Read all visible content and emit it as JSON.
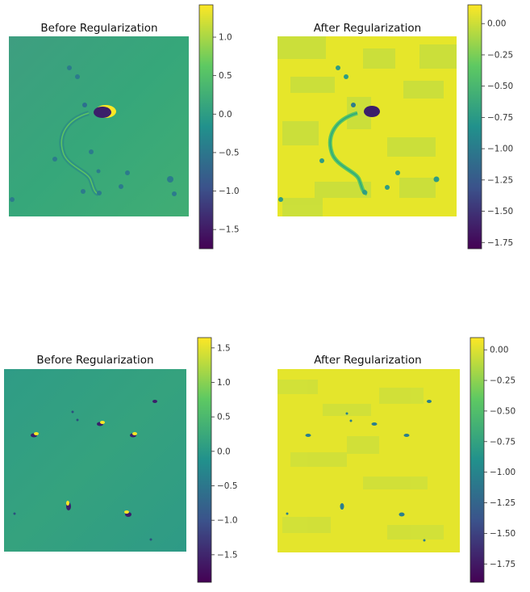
{
  "chart_data": [
    {
      "type": "heatmap",
      "title": "Before Regularization",
      "colormap": "viridis",
      "colorbar": {
        "ticks": [
          1.0,
          0.5,
          0.0,
          -0.5,
          -1.0,
          -1.5
        ],
        "tick_labels": [
          "1.0",
          "0.5",
          "0.0",
          "−0.5",
          "−1.0",
          "−1.5"
        ],
        "range": [
          -1.75,
          1.42
        ]
      }
    },
    {
      "type": "heatmap",
      "title": "After Regularization",
      "colormap": "viridis",
      "colorbar": {
        "ticks": [
          0.0,
          -0.25,
          -0.5,
          -0.75,
          -1.0,
          -1.25,
          -1.5,
          -1.75
        ],
        "tick_labels": [
          "0.00",
          "−0.25",
          "−0.50",
          "−0.75",
          "−1.00",
          "−1.25",
          "−1.50",
          "−1.75"
        ],
        "range": [
          -1.8,
          0.15
        ]
      }
    },
    {
      "type": "heatmap",
      "title": "Before Regularization",
      "colormap": "viridis",
      "colorbar": {
        "ticks": [
          1.5,
          1.0,
          0.5,
          0.0,
          -0.5,
          -1.0,
          -1.5
        ],
        "tick_labels": [
          "1.5",
          "1.0",
          "0.5",
          "0.0",
          "−0.5",
          "−1.0",
          "−1.5"
        ],
        "range": [
          -1.9,
          1.65
        ]
      }
    },
    {
      "type": "heatmap",
      "title": "After Regularization",
      "colormap": "viridis",
      "colorbar": {
        "ticks": [
          0.0,
          -0.25,
          -0.5,
          -0.75,
          -1.0,
          -1.25,
          -1.5,
          -1.75
        ],
        "tick_labels": [
          "0.00",
          "−0.25",
          "−0.50",
          "−0.75",
          "−1.00",
          "−1.25",
          "−1.50",
          "−1.75"
        ],
        "range": [
          -1.9,
          0.1
        ]
      }
    }
  ],
  "colors": {
    "viridis_stops": [
      "#440154",
      "#3b528b",
      "#21918c",
      "#5ec962",
      "#fde725"
    ],
    "before_background": "#3aa878",
    "after_background": "#e3e530",
    "dark_feature": "#3b1f6a",
    "bright_feature": "#fde725"
  }
}
